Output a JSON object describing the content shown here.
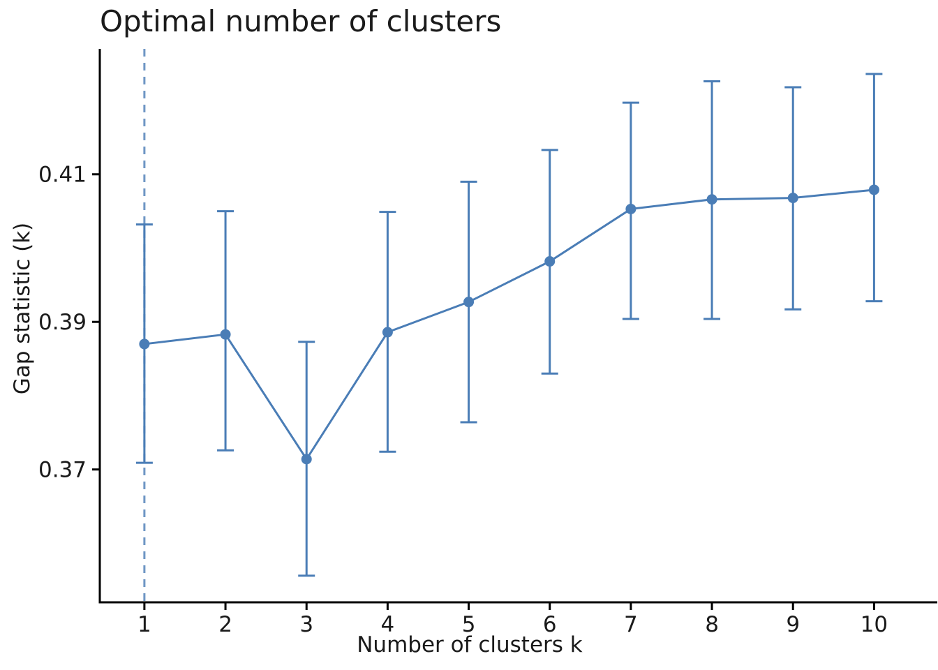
{
  "chart_data": {
    "type": "line",
    "subtype": "errorbar",
    "title": "Optimal number of clusters",
    "xlabel": "Number of clusters k",
    "ylabel": "Gap statistic (k)",
    "x": [
      1,
      2,
      3,
      4,
      5,
      6,
      7,
      8,
      9,
      10
    ],
    "series": [
      {
        "name": "Gap statistic",
        "values": [
          0.387,
          0.3883,
          0.3714,
          0.3886,
          0.3927,
          0.3982,
          0.4053,
          0.4066,
          0.4068,
          0.4079
        ],
        "upper": [
          0.4032,
          0.405,
          0.3873,
          0.4049,
          0.409,
          0.4133,
          0.4197,
          0.4226,
          0.4218,
          0.4236
        ],
        "lower": [
          0.3709,
          0.3726,
          0.3556,
          0.3724,
          0.3764,
          0.383,
          0.3904,
          0.3904,
          0.3917,
          0.3928
        ]
      }
    ],
    "vline": {
      "x": 1,
      "style": "dashed",
      "note": "selected k indicator"
    },
    "xticks": [
      1,
      2,
      3,
      4,
      5,
      6,
      7,
      8,
      9,
      10
    ],
    "xtick_labels": [
      "1",
      "2",
      "3",
      "4",
      "5",
      "6",
      "7",
      "8",
      "9",
      "10"
    ],
    "yticks": [
      0.37,
      0.39,
      0.41
    ],
    "ytick_labels": [
      "0.37",
      "0.39",
      "0.41"
    ],
    "xlim": [
      0.45,
      10.78
    ],
    "ylim": [
      0.352,
      0.427
    ],
    "grid": false,
    "legend": null,
    "marker": "circle",
    "colors": {
      "series": "#4a7db6",
      "axis": "#000000",
      "text": "#1a1a1a",
      "background": "#ffffff"
    }
  }
}
